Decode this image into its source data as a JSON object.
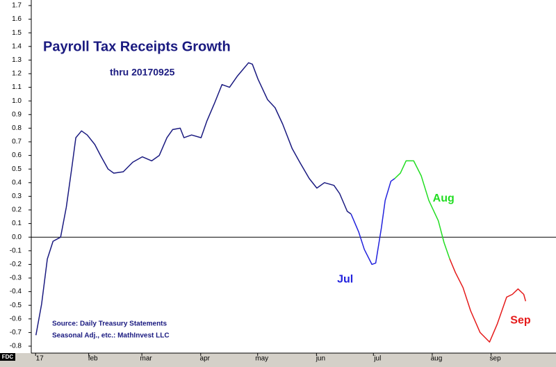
{
  "chart_data": {
    "type": "line",
    "title": "Payroll Tax Receipts Growth",
    "subtitle": "thru 20170925",
    "annotations": [
      "Source:  Daily Treasury Statements",
      "Seasonal Adj., etc.:  MathInvest LLC"
    ],
    "badge": "FDC",
    "xlim": [
      1,
      276
    ],
    "ylim": [
      -0.8,
      1.7
    ],
    "xticks": [
      {
        "value": 4,
        "label": "17"
      },
      {
        "value": 32,
        "label": "feb"
      },
      {
        "value": 60,
        "label": "mar"
      },
      {
        "value": 91,
        "label": "apr"
      },
      {
        "value": 121,
        "label": "may"
      },
      {
        "value": 152,
        "label": "jun"
      },
      {
        "value": 182,
        "label": "jul"
      },
      {
        "value": 213,
        "label": "aug"
      },
      {
        "value": 244,
        "label": "sep"
      }
    ],
    "yticks": [
      1.7,
      1.6,
      1.5,
      1.4,
      1.3,
      1.2,
      1.1,
      {
        "value": 1,
        "label": "1.0"
      },
      0.9,
      0.8,
      0.7,
      0.6,
      0.5,
      0.4,
      0.3,
      0.2,
      0.1,
      {
        "value": 0,
        "label": "0.0"
      },
      -0.1,
      -0.2,
      -0.3,
      -0.4,
      -0.5,
      -0.6,
      -0.7,
      -0.8
    ],
    "zero_line": true,
    "series": [
      {
        "color": "#1a1a80",
        "x": [
          2,
          5,
          8,
          11,
          15,
          18,
          21,
          23,
          26,
          29,
          33,
          36,
          40,
          43,
          48,
          53,
          58,
          63,
          67,
          71,
          74,
          78,
          80,
          84,
          89,
          92,
          96,
          100,
          104,
          108,
          111,
          114,
          116,
          119,
          124,
          128,
          132,
          137,
          141,
          146,
          150,
          154,
          159,
          162,
          166,
          168
        ],
        "values": [
          -0.72,
          -0.49,
          -0.16,
          -0.03,
          0.0,
          0.22,
          0.52,
          0.73,
          0.78,
          0.75,
          0.68,
          0.6,
          0.5,
          0.47,
          0.48,
          0.55,
          0.59,
          0.56,
          0.6,
          0.73,
          0.79,
          0.8,
          0.73,
          0.75,
          0.73,
          0.85,
          0.98,
          1.12,
          1.1,
          1.18,
          1.23,
          1.28,
          1.27,
          1.16,
          1.01,
          0.95,
          0.83,
          0.65,
          0.55,
          0.43,
          0.36,
          0.4,
          0.38,
          0.32,
          0.19,
          0.17
        ]
      },
      {
        "name": "Jul",
        "color": "#2222dd",
        "x": [
          168,
          172,
          175,
          179,
          181,
          184,
          186,
          189,
          191
        ],
        "values": [
          0.17,
          0.04,
          -0.09,
          -0.2,
          -0.19,
          0.07,
          0.27,
          0.41,
          0.43
        ]
      },
      {
        "name": "Aug",
        "color": "#22dd22",
        "x": [
          191,
          194,
          197,
          201,
          205,
          209,
          214,
          217,
          220
        ],
        "values": [
          0.43,
          0.47,
          0.56,
          0.56,
          0.45,
          0.27,
          0.12,
          -0.04,
          -0.16
        ]
      },
      {
        "name": "Sep",
        "color": "#e51a1a",
        "x": [
          220,
          223,
          227,
          231,
          236,
          241,
          245,
          250,
          253,
          256,
          259,
          260
        ],
        "values": [
          -0.16,
          -0.26,
          -0.37,
          -0.54,
          -0.7,
          -0.77,
          -0.64,
          -0.44,
          -0.42,
          -0.38,
          -0.42,
          -0.47
        ]
      }
    ]
  }
}
